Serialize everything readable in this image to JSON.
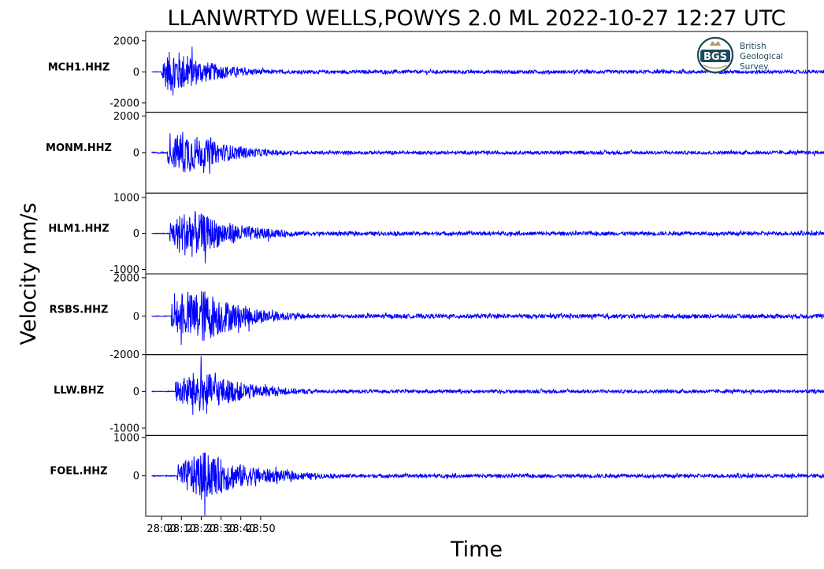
{
  "chart_data": {
    "type": "line",
    "title": "LLANWRTYD WELLS,POWYS 2.0 ML   2022-10-27 12:27 UTC",
    "xlabel": "Time",
    "ylabel": "Velocity nm/s",
    "x_ticks": [
      "28:00",
      "28:10",
      "28:20",
      "28:30",
      "28:40",
      "28:50"
    ],
    "x_range_seconds": [
      1672,
      2006
    ],
    "line_color": "#0000ff",
    "logo": {
      "lines": [
        "British",
        "Geological",
        "Survey"
      ],
      "mark": "BGS"
    },
    "series": [
      {
        "name": "MCH1.HHZ",
        "ylim": [
          -2600,
          2600
        ],
        "yticks": [
          2000,
          0,
          -2000
        ],
        "ytick_labels": [
          "2000",
          "0",
          "-2000"
        ],
        "onset_s": 1680,
        "peak_time_s": 1685,
        "peak_amp": 2300,
        "decay_s": 20,
        "noise": 25
      },
      {
        "name": "MONM.HHZ",
        "ylim": [
          -2200,
          2200
        ],
        "yticks": [
          2000,
          0
        ],
        "ytick_labels": [
          "2000",
          "0"
        ],
        "onset_s": 1683,
        "peak_time_s": 1690,
        "peak_amp": 1850,
        "decay_s": 22,
        "noise": 60
      },
      {
        "name": "HLM1.HHZ",
        "ylim": [
          -1120,
          1120
        ],
        "yticks": [
          1000,
          0,
          -1000
        ],
        "ytick_labels": [
          "1000",
          "0",
          "-1000"
        ],
        "onset_s": 1684,
        "peak_time_s": 1693,
        "peak_amp": 1050,
        "decay_s": 24,
        "noise": 15
      },
      {
        "name": "RSBS.HHZ",
        "ylim": [
          -2000,
          2200
        ],
        "yticks": [
          2000,
          0,
          -2000
        ],
        "ytick_labels": [
          "2000",
          "0",
          "-2000"
        ],
        "onset_s": 1685,
        "peak_time_s": 1699,
        "peak_amp": 2200,
        "decay_s": 22,
        "noise": 30
      },
      {
        "name": "LLW.BHZ",
        "ylim": [
          -1200,
          1000
        ],
        "yticks": [
          0,
          -1000
        ],
        "ytick_labels": [
          "0",
          "-1000"
        ],
        "onset_s": 1687,
        "peak_time_s": 1698,
        "peak_amp": 900,
        "decay_s": 24,
        "noise": 15
      },
      {
        "name": "FOEL.HHZ",
        "ylim": [
          -1050,
          1050
        ],
        "yticks": [
          1000,
          0
        ],
        "ytick_labels": [
          "1000",
          "0"
        ],
        "onset_s": 1688,
        "peak_time_s": 1700,
        "peak_amp": 950,
        "decay_s": 26,
        "noise": 20
      }
    ]
  }
}
